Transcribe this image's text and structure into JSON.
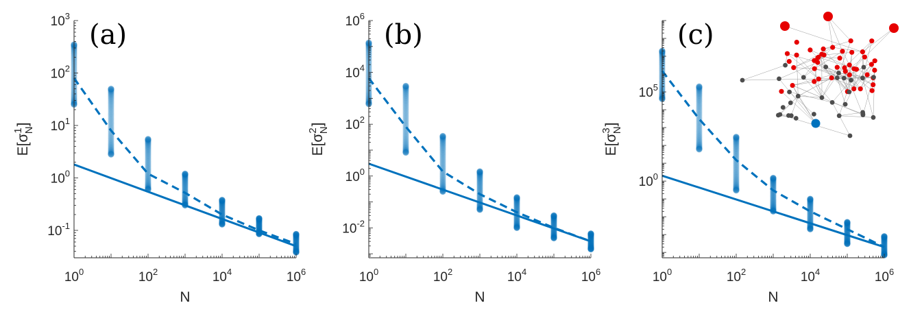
{
  "figure": {
    "marker_color": "#0072BD",
    "node_colors": {
      "red": "#E60000",
      "gray": "#4D4D4D",
      "blue": "#0072BD"
    }
  },
  "chart_data": [
    {
      "type": "scatter",
      "panel_label": "(a)",
      "xlabel": "N",
      "ylabel": "E[σ",
      "ylabel_sup": "1",
      "ylabel_sub": "N",
      "ylabel_tail": "]",
      "xscale": "log",
      "yscale": "log",
      "xlim": [
        1,
        1000000
      ],
      "ylim": [
        0.03,
        1000
      ],
      "x_ticks": [
        {
          "base": "10",
          "exp": "0",
          "value": 1
        },
        {
          "base": "10",
          "exp": "2",
          "value": 100
        },
        {
          "base": "10",
          "exp": "4",
          "value": 10000
        },
        {
          "base": "10",
          "exp": "6",
          "value": 1000000
        }
      ],
      "y_ticks": [
        {
          "base": "10",
          "exp": "-1",
          "value": 0.1
        },
        {
          "base": "10",
          "exp": "0",
          "value": 1
        },
        {
          "base": "10",
          "exp": "1",
          "value": 10
        },
        {
          "base": "10",
          "exp": "2",
          "value": 100
        },
        {
          "base": "10",
          "exp": "3",
          "value": 1000
        }
      ],
      "grid": false,
      "samples": [
        {
          "x": 1,
          "ymin": 25,
          "ymax": 350
        },
        {
          "x": 10,
          "ymin": 2.8,
          "ymax": 50
        },
        {
          "x": 100,
          "ymin": 0.6,
          "ymax": 5.5
        },
        {
          "x": 1000,
          "ymin": 0.3,
          "ymax": 1.2
        },
        {
          "x": 10000,
          "ymin": 0.13,
          "ymax": 0.38
        },
        {
          "x": 100000,
          "ymin": 0.085,
          "ymax": 0.17
        },
        {
          "x": 1000000,
          "ymin": 0.038,
          "ymax": 0.085
        }
      ],
      "dashed_line": [
        {
          "x": 1,
          "y": 80
        },
        {
          "x": 10,
          "y": 8
        },
        {
          "x": 100,
          "y": 1.2
        },
        {
          "x": 1000,
          "y": 0.52
        },
        {
          "x": 10000,
          "y": 0.2
        },
        {
          "x": 100000,
          "y": 0.1
        },
        {
          "x": 1000000,
          "y": 0.055
        }
      ],
      "solid_line": [
        {
          "x": 1,
          "y": 1.8
        },
        {
          "x": 1000000,
          "y": 0.05
        }
      ]
    },
    {
      "type": "scatter",
      "panel_label": "(b)",
      "xlabel": "N",
      "ylabel": "E[σ",
      "ylabel_sup": "2",
      "ylabel_sub": "N",
      "ylabel_tail": "]",
      "xscale": "log",
      "yscale": "log",
      "xlim": [
        1,
        1000000
      ],
      "ylim": [
        0.0007,
        1000000
      ],
      "x_ticks": [
        {
          "base": "10",
          "exp": "0",
          "value": 1
        },
        {
          "base": "10",
          "exp": "2",
          "value": 100
        },
        {
          "base": "10",
          "exp": "4",
          "value": 10000
        },
        {
          "base": "10",
          "exp": "6",
          "value": 1000000
        }
      ],
      "y_ticks": [
        {
          "base": "10",
          "exp": "-2",
          "value": 0.01
        },
        {
          "base": "10",
          "exp": "0",
          "value": 1
        },
        {
          "base": "10",
          "exp": "2",
          "value": 100
        },
        {
          "base": "10",
          "exp": "4",
          "value": 10000
        },
        {
          "base": "10",
          "exp": "6",
          "value": 1000000
        }
      ],
      "grid": false,
      "samples": [
        {
          "x": 1,
          "ymin": 600,
          "ymax": 140000
        },
        {
          "x": 10,
          "ymin": 8,
          "ymax": 3000
        },
        {
          "x": 100,
          "ymin": 0.25,
          "ymax": 35
        },
        {
          "x": 1000,
          "ymin": 0.05,
          "ymax": 1.5
        },
        {
          "x": 10000,
          "ymin": 0.01,
          "ymax": 0.15
        },
        {
          "x": 100000,
          "ymin": 0.004,
          "ymax": 0.03
        },
        {
          "x": 1000000,
          "ymin": 0.0015,
          "ymax": 0.006
        }
      ],
      "dashed_line": [
        {
          "x": 1,
          "y": 6000
        },
        {
          "x": 10,
          "y": 80
        },
        {
          "x": 100,
          "y": 1.5
        },
        {
          "x": 1000,
          "y": 0.2
        },
        {
          "x": 10000,
          "y": 0.04
        },
        {
          "x": 100000,
          "y": 0.01
        },
        {
          "x": 1000000,
          "y": 0.003
        }
      ],
      "solid_line": [
        {
          "x": 1,
          "y": 3
        },
        {
          "x": 1000000,
          "y": 0.003
        }
      ]
    },
    {
      "type": "scatter",
      "panel_label": "(c)",
      "xlabel": "N",
      "ylabel": "E[σ",
      "ylabel_sup": "3",
      "ylabel_sub": "N",
      "ylabel_tail": "]",
      "xscale": "log",
      "yscale": "log",
      "xlim": [
        1,
        1000000
      ],
      "ylim": [
        5e-05,
        1000000000
      ],
      "x_ticks": [
        {
          "base": "10",
          "exp": "0",
          "value": 1
        },
        {
          "base": "10",
          "exp": "2",
          "value": 100
        },
        {
          "base": "10",
          "exp": "4",
          "value": 10000
        },
        {
          "base": "10",
          "exp": "6",
          "value": 1000000
        }
      ],
      "y_ticks": [
        {
          "base": "10",
          "exp": "0",
          "value": 1
        },
        {
          "base": "10",
          "exp": "5",
          "value": 100000
        }
      ],
      "grid": false,
      "samples": [
        {
          "x": 1,
          "ymin": 40000,
          "ymax": 20000000
        },
        {
          "x": 10,
          "ymin": 60,
          "ymax": 200000
        },
        {
          "x": 100,
          "ymin": 0.3,
          "ymax": 300
        },
        {
          "x": 1000,
          "ymin": 0.02,
          "ymax": 1.5
        },
        {
          "x": 10000,
          "ymin": 0.002,
          "ymax": 0.1
        },
        {
          "x": 100000,
          "ymin": 0.0003,
          "ymax": 0.005
        },
        {
          "x": 1000000,
          "ymin": 7e-05,
          "ymax": 0.0008
        }
      ],
      "dashed_line": [
        {
          "x": 1,
          "y": 1500000
        },
        {
          "x": 10,
          "y": 3000
        },
        {
          "x": 100,
          "y": 15
        },
        {
          "x": 1000,
          "y": 0.3
        },
        {
          "x": 10000,
          "y": 0.02
        },
        {
          "x": 100000,
          "y": 0.002
        },
        {
          "x": 1000000,
          "y": 0.0002
        }
      ],
      "solid_line": [
        {
          "x": 1,
          "y": 2
        },
        {
          "x": 1000000,
          "y": 0.0002
        }
      ]
    }
  ]
}
